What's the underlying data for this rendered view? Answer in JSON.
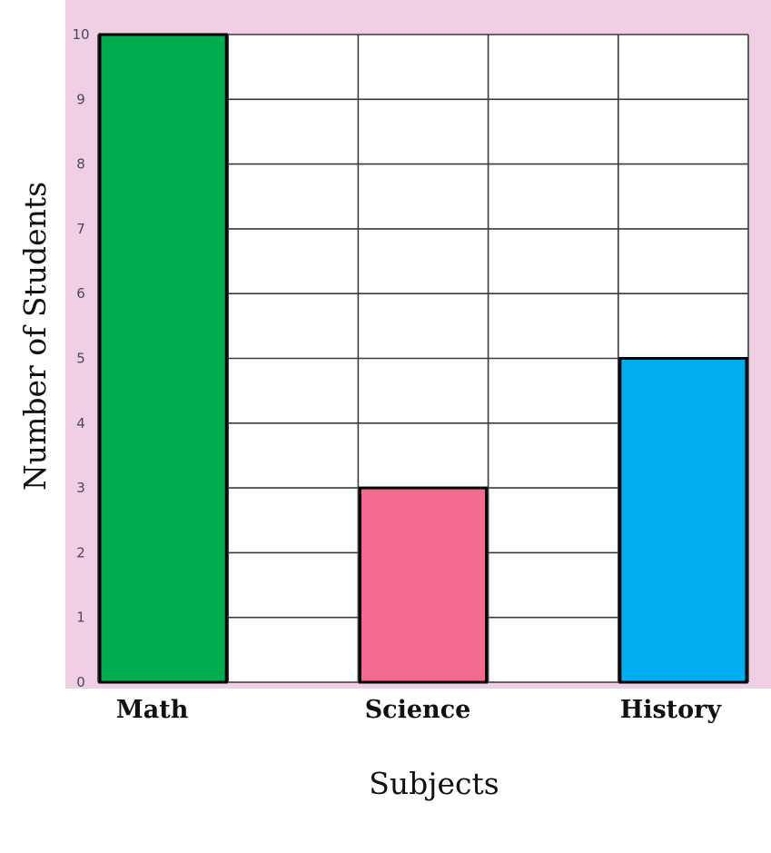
{
  "chart_data": {
    "type": "bar",
    "categories": [
      "Math",
      "Science",
      "History"
    ],
    "values": [
      10,
      3,
      5
    ],
    "title": "",
    "xlabel": "Subjects",
    "ylabel": "Number of Students",
    "ylim": [
      0,
      10
    ],
    "yticks": [
      "0",
      "1",
      "2",
      "3",
      "4",
      "5",
      "6",
      "7",
      "8",
      "9",
      "10"
    ],
    "grid": true,
    "colors": {
      "Math": "#00ad4e",
      "Science": "#f46a8e",
      "History": "#00aeef",
      "frame": "#f0cfe4",
      "plot_background": "#ffffff",
      "grid": "#3a3a3a"
    }
  }
}
